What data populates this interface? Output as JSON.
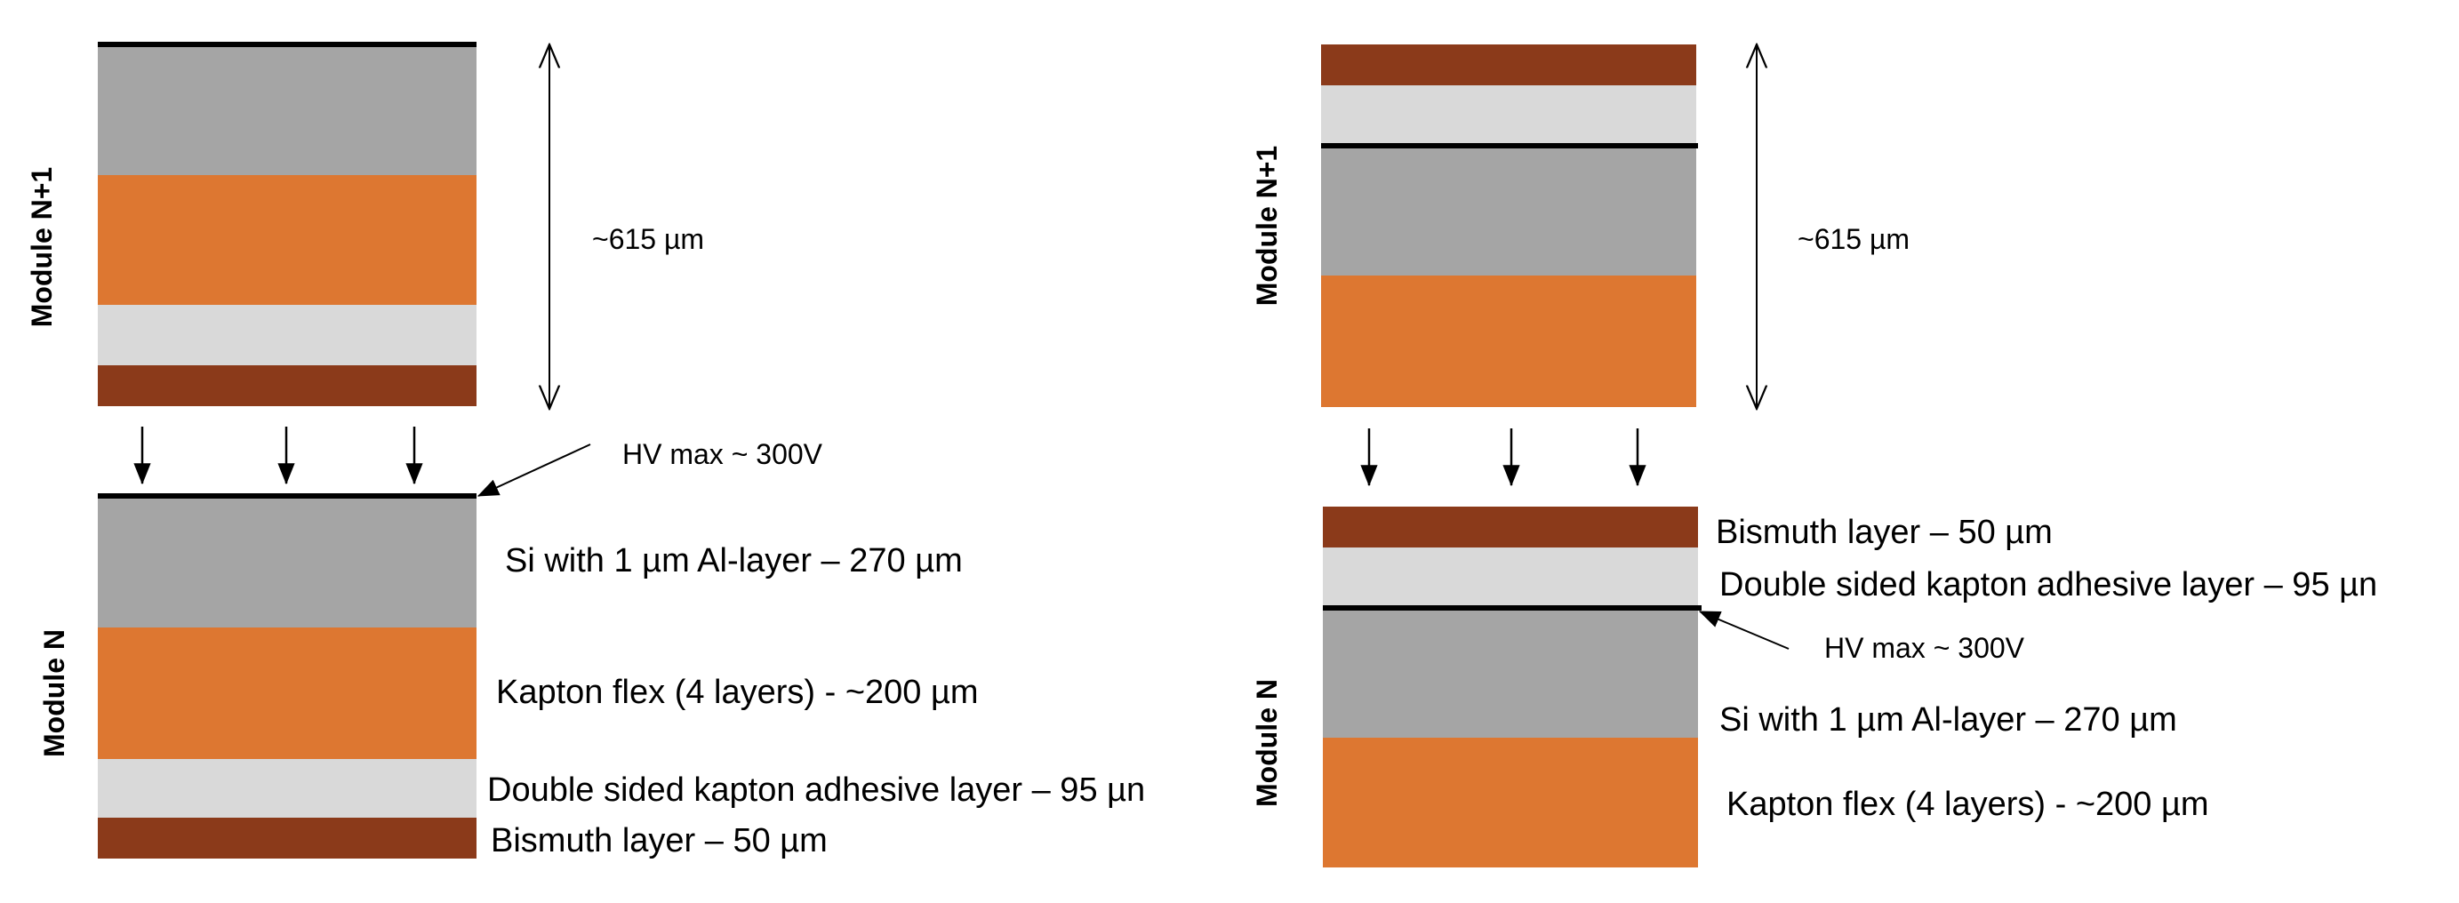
{
  "colors": {
    "silicon": "#a5a5a5",
    "kapton": "#dd7731",
    "adhesive": "#d9d9d9",
    "bismuth": "#8b3a1a",
    "line": "#000000"
  },
  "left_panel": {
    "module_n1_label": "Module N+1",
    "module_n_label": "Module N",
    "thickness_label": "~615 µm",
    "hv_label": "HV max ~ 300V",
    "layers": {
      "si": "Si with 1 µm Al-layer – 270 µm",
      "kapton": "Kapton flex (4 layers) - ~200 µm",
      "adhesive": "Double sided kapton adhesive layer – 95 µn",
      "bismuth": "Bismuth layer – 50 µm"
    }
  },
  "right_panel": {
    "module_n1_label": "Module N+1",
    "module_n_label": "Module N",
    "thickness_label": "~615 µm",
    "hv_label": "HV max ~ 300V",
    "layers": {
      "bismuth": "Bismuth layer – 50 µm",
      "adhesive": "Double sided kapton adhesive layer – 95 µn",
      "si": "Si with 1 µm Al-layer – 270 µm",
      "kapton": "Kapton flex (4 layers) - ~200 µm"
    }
  }
}
